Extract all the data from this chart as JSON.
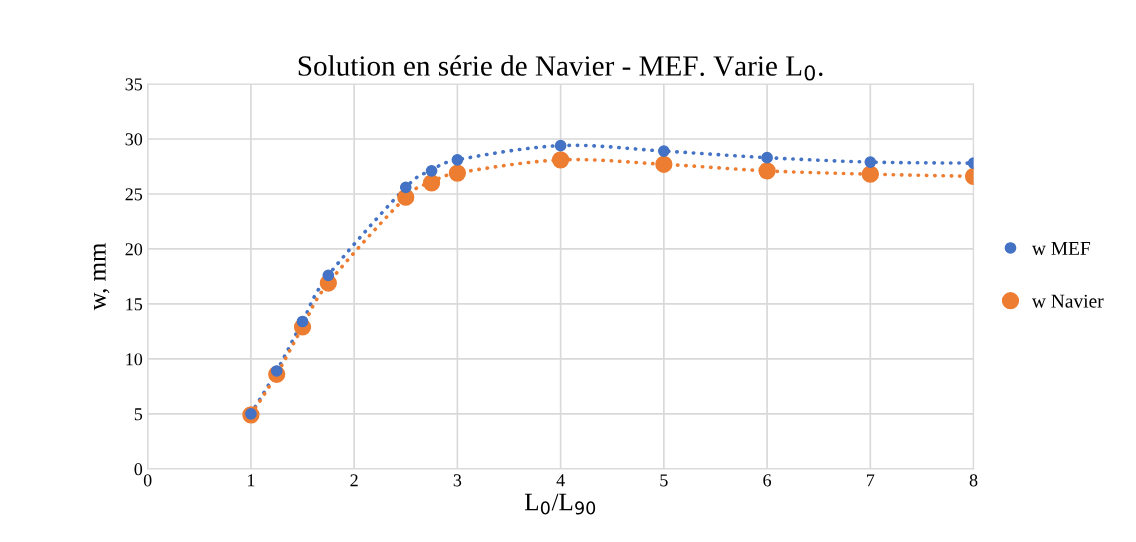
{
  "chart_data": {
    "type": "line",
    "title": "Solution en série de Navier - MEF. Varie L$_{0}$.",
    "xlabel": "L$_{0}$/L$_{90}$",
    "ylabel": "w, mm",
    "x": [
      1,
      1.25,
      1.5,
      1.75,
      2.5,
      2.75,
      3,
      4,
      5,
      6,
      7,
      8
    ],
    "series": [
      {
        "name": "w MEF",
        "color": "#4472c4",
        "values": [
          5,
          8.9,
          13.4,
          17.6,
          25.6,
          27.1,
          28.1,
          29.4,
          28.9,
          28.3,
          27.9,
          27.8
        ]
      },
      {
        "name": "w Navier",
        "color": "#ed7d31",
        "values": [
          4.9,
          8.6,
          12.9,
          16.9,
          24.7,
          26.0,
          26.9,
          28.1,
          27.7,
          27.1,
          26.8,
          26.6
        ]
      }
    ],
    "xlim": [
      0,
      8
    ],
    "xticks": [
      0,
      1,
      2,
      3,
      4,
      5,
      6,
      7,
      8
    ],
    "ylim": [
      0,
      35
    ],
    "yticks": [
      0,
      5,
      10,
      15,
      20,
      25,
      30,
      35
    ],
    "grid": true,
    "legend": "right",
    "marker": "circle",
    "line_style": "dotted"
  }
}
